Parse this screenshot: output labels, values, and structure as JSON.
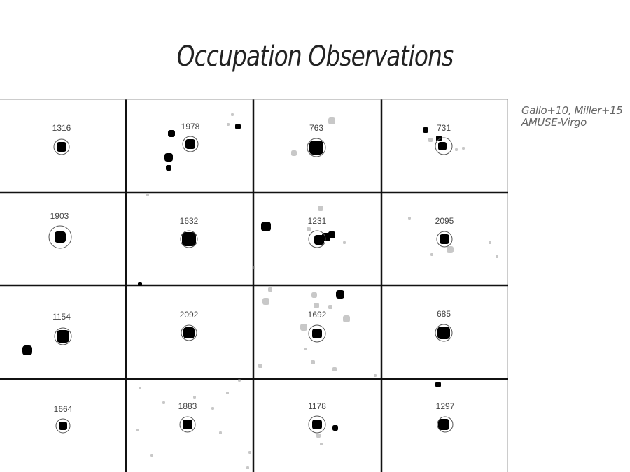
{
  "title": "Occupation Observations",
  "references": [
    "Gallo+10, Miller+15",
    "AMUSE-Virgo"
  ],
  "cutouts": [
    {
      "id": "1316"
    },
    {
      "id": "1978"
    },
    {
      "id": "763"
    },
    {
      "id": "731"
    },
    {
      "id": "1903"
    },
    {
      "id": "1632"
    },
    {
      "id": "1231"
    },
    {
      "id": "2095"
    },
    {
      "id": "1154"
    },
    {
      "id": "2092"
    },
    {
      "id": "1692"
    },
    {
      "id": "685"
    },
    {
      "id": "1664"
    },
    {
      "id": "1883"
    },
    {
      "id": "1178"
    },
    {
      "id": "1297"
    }
  ],
  "colors": {
    "background": "#ffffff",
    "grid_lines": "#111111",
    "source": "#000000",
    "faint_source": "#9a9a9a",
    "label_text": "#444444"
  }
}
